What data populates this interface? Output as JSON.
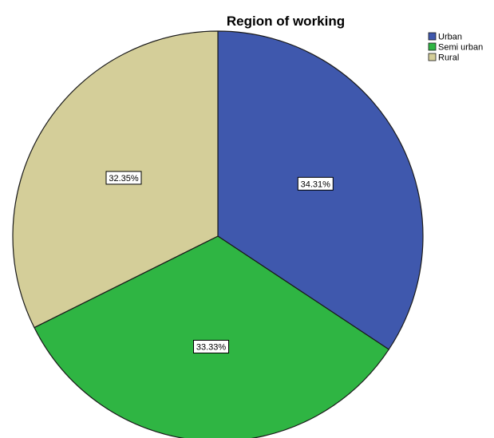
{
  "chart_data": {
    "type": "pie",
    "title": "Region of working",
    "legend_position": "top-right",
    "categories": [
      "Urban",
      "Semi urban",
      "Rural"
    ],
    "values": [
      34.31,
      33.33,
      32.35
    ],
    "data_labels": [
      "34.31%",
      "33.33%",
      "32.35%"
    ],
    "colors": [
      "#3f58ad",
      "#2fb543",
      "#d4ce99"
    ],
    "start_angle": "12 o'clock",
    "direction": "clockwise"
  }
}
